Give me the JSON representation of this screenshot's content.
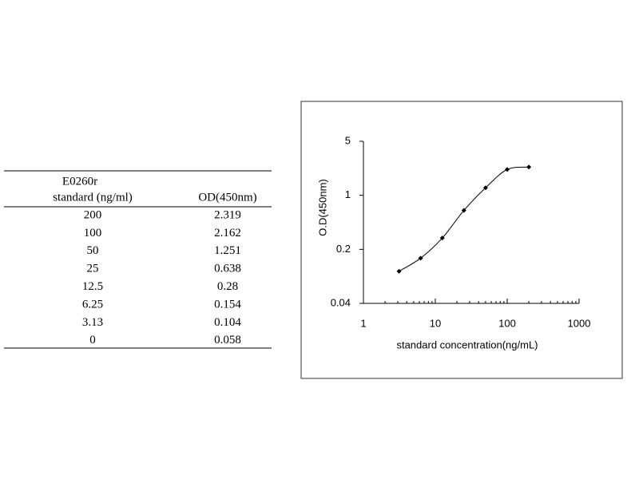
{
  "table": {
    "title": "E0260r",
    "headers": [
      "standard (ng/ml)",
      "OD(450nm)"
    ],
    "rows": [
      [
        "200",
        "2.319"
      ],
      [
        "100",
        "2.162"
      ],
      [
        "50",
        "1.251"
      ],
      [
        "25",
        "0.638"
      ],
      [
        "12.5",
        "0.28"
      ],
      [
        "6.25",
        "0.154"
      ],
      [
        "3.13",
        "0.104"
      ],
      [
        "0",
        "0.058"
      ]
    ]
  },
  "chart_data": {
    "type": "line",
    "xlabel": "standard concentration(ng/mL)",
    "ylabel": "O.D(450nm)",
    "x": [
      3.13,
      6.25,
      12.5,
      25,
      50,
      100,
      200
    ],
    "values": [
      0.104,
      0.154,
      0.28,
      0.638,
      1.251,
      2.162,
      2.319
    ],
    "color": "#000000",
    "xlog": true,
    "ylog": true,
    "xlim": [
      1,
      1000
    ],
    "ylim": [
      0.04,
      5
    ],
    "xticks": [
      1,
      10,
      100,
      1000
    ],
    "yticks": [
      0.04,
      0.2,
      1,
      5
    ]
  }
}
